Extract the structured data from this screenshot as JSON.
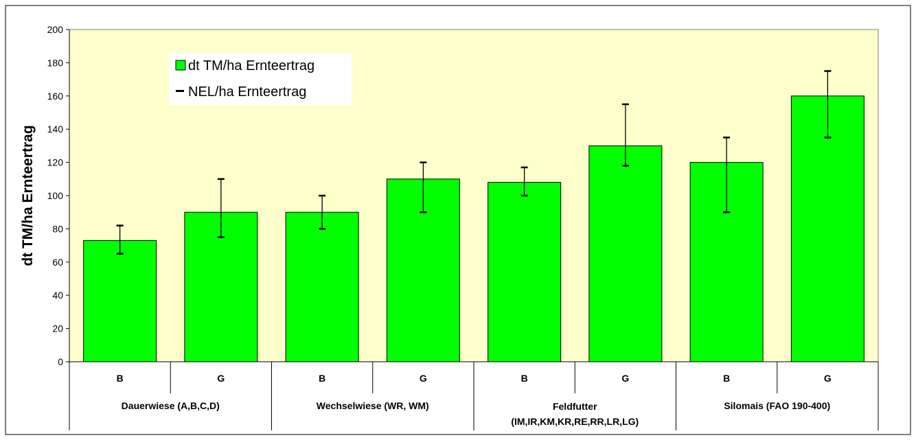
{
  "colors": {
    "plot_background": "#FFFFCC",
    "bar_fill": "#00FF00",
    "bar_stroke": "#000000",
    "error_bar": "#000000"
  },
  "chart_data": {
    "type": "bar",
    "title": "",
    "xlabel": "",
    "ylabel": "dt TM/ha Ernteertrag",
    "ylim": [
      0,
      200
    ],
    "yticks": [
      0,
      20,
      40,
      60,
      80,
      100,
      120,
      140,
      160,
      180,
      200
    ],
    "grid": false,
    "legend": {
      "placement": "top-left",
      "entries": [
        "dt TM/ha Ernteertrag",
        "NEL/ha Ernteertrag"
      ]
    },
    "groups": [
      {
        "label_lines": [
          "Dauerwiese (A,B,C,D)"
        ],
        "categories": [
          "B",
          "G"
        ]
      },
      {
        "label_lines": [
          "Wechselwiese (WR, WM)"
        ],
        "categories": [
          "B",
          "G"
        ]
      },
      {
        "label_lines": [
          "Feldfutter",
          "(IM,IR,KM,KR,RE,RR,LR,LG)"
        ],
        "categories": [
          "B",
          "G"
        ]
      },
      {
        "label_lines": [
          "Silomais (FAO 190-400)"
        ],
        "categories": [
          "B",
          "G"
        ]
      }
    ],
    "series": [
      {
        "name": "dt TM/ha Ernteertrag",
        "values": [
          73,
          90,
          90,
          110,
          108,
          130,
          120,
          160
        ],
        "error_low": [
          65,
          75,
          80,
          90,
          100,
          118,
          90,
          135
        ],
        "error_high": [
          82,
          110,
          100,
          120,
          117,
          155,
          135,
          175
        ]
      }
    ]
  }
}
